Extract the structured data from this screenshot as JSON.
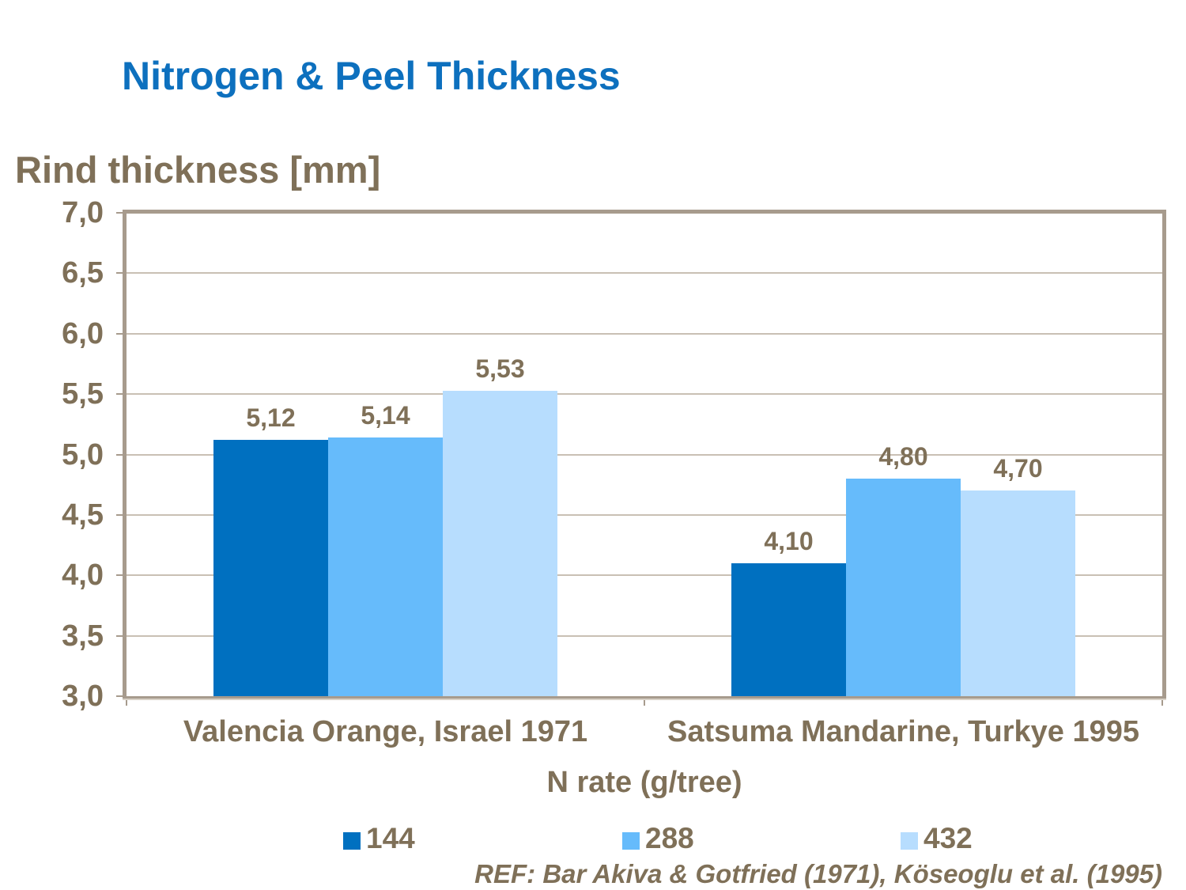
{
  "title": {
    "text": "Nitrogen & Peel Thickness",
    "color": "#0D70BE"
  },
  "chart_data": {
    "type": "bar",
    "title": "Nitrogen & Peel Thickness",
    "ylabel": "Rind thickness [mm]",
    "xlabel": "N rate (g/tree)",
    "ylim": [
      3.0,
      7.0
    ],
    "ytick_step": 0.5,
    "ytick_labels": [
      "7,0",
      "6,5",
      "6,0",
      "5,5",
      "5,0",
      "4,5",
      "4,0",
      "3,5",
      "3,0"
    ],
    "grid": true,
    "legend_position": "bottom",
    "categories": [
      "Valencia Orange, Israel 1971",
      "Satsuma Mandarine, Turkye 1995"
    ],
    "series": [
      {
        "name": "144",
        "color": "#0070C0",
        "values": [
          5.12,
          4.1
        ],
        "value_labels": [
          "5,12",
          "4,10"
        ]
      },
      {
        "name": "288",
        "color": "#66BBFB",
        "values": [
          5.14,
          4.8
        ],
        "value_labels": [
          "5,14",
          "4,80"
        ]
      },
      {
        "name": "432",
        "color": "#B7DDFE",
        "values": [
          5.53,
          4.7
        ],
        "value_labels": [
          "5,53",
          "4,70"
        ]
      }
    ]
  },
  "footer": {
    "reference": "REF: Bar Akiva & Gotfried (1971), Köseoglu et al. (1995)"
  },
  "colors": {
    "text_brown": "#7F7058",
    "axis_frame": "#A79B8D",
    "axis_shadow": "#D9D2C7",
    "gridline": "#C9C0B4",
    "background": "#FFFFFF"
  }
}
